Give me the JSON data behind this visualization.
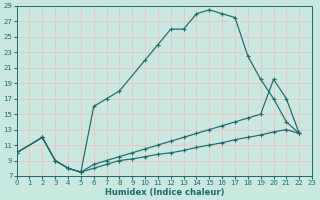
{
  "xlabel": "Humidex (Indice chaleur)",
  "xlim": [
    0,
    23
  ],
  "ylim": [
    7,
    29
  ],
  "xticks": [
    0,
    1,
    2,
    3,
    4,
    5,
    6,
    7,
    8,
    9,
    10,
    11,
    12,
    13,
    14,
    15,
    16,
    17,
    18,
    19,
    20,
    21,
    22,
    23
  ],
  "yticks": [
    7,
    9,
    11,
    13,
    15,
    17,
    19,
    21,
    23,
    25,
    27,
    29
  ],
  "bg_color": "#c8e8e0",
  "line_color": "#1a6b6b",
  "grid_color": "#e8c8c8",
  "curve1_x": [
    0,
    2,
    3,
    4,
    5,
    6,
    7,
    8,
    10,
    11,
    12,
    13,
    14,
    15,
    16,
    17,
    18,
    19,
    20,
    21,
    22
  ],
  "curve1_y": [
    10,
    12,
    9,
    8,
    7.5,
    16,
    17,
    18,
    22,
    24,
    26,
    26,
    28,
    28.5,
    28,
    27.5,
    22.5,
    19.5,
    17,
    14,
    12.5
  ],
  "curve2_x": [
    0,
    2,
    3,
    4,
    5,
    6,
    7,
    8,
    9,
    10,
    11,
    12,
    13,
    14,
    15,
    16,
    17,
    18,
    19,
    20,
    21,
    22
  ],
  "curve2_y": [
    10,
    12,
    9,
    8,
    7.5,
    8.5,
    9,
    9.5,
    10,
    10.5,
    11,
    11.5,
    12,
    12.5,
    13,
    13.5,
    14,
    14.5,
    15,
    19.5,
    17,
    12.5
  ],
  "curve3_x": [
    0,
    2,
    3,
    4,
    5,
    6,
    7,
    8,
    9,
    10,
    11,
    12,
    13,
    14,
    15,
    16,
    17,
    18,
    19,
    20,
    21,
    22
  ],
  "curve3_y": [
    10,
    12,
    9,
    8,
    7.5,
    8,
    8.5,
    9,
    9.2,
    9.5,
    9.8,
    10,
    10.3,
    10.7,
    11,
    11.3,
    11.7,
    12,
    12.3,
    12.7,
    13,
    12.5
  ]
}
